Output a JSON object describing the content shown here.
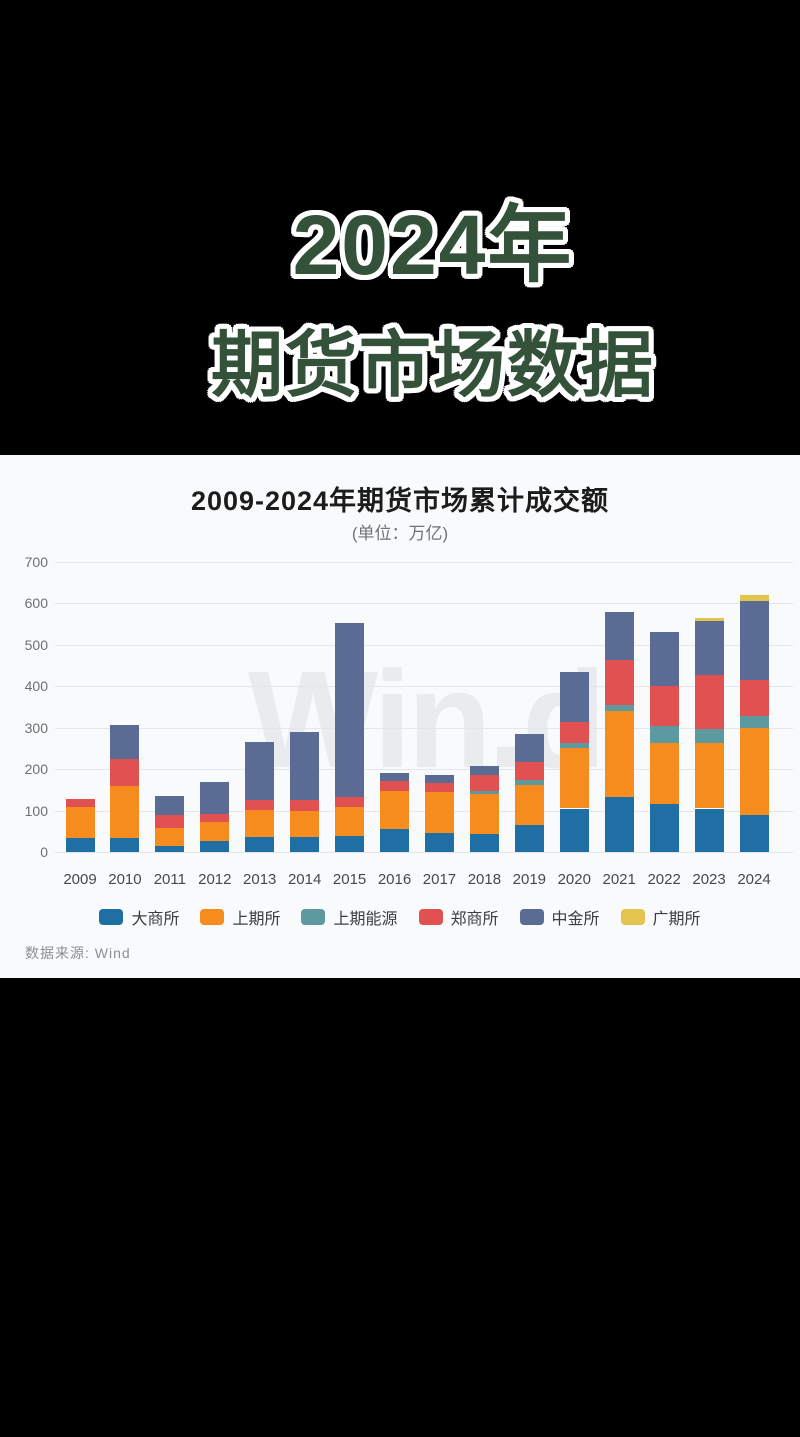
{
  "header": {
    "line1": "2024年",
    "line2": "期货市场数据",
    "title_color": "#345139"
  },
  "panel": {
    "watermark": "Win.d",
    "source": "数据来源: Wind"
  },
  "chart_data": {
    "type": "bar",
    "stacked": true,
    "title": "2009-2024年期货市场累计成交额",
    "subtitle": "(单位：万亿)",
    "xlabel": "",
    "ylabel": "",
    "ylim": [
      0,
      700
    ],
    "yticks": [
      0,
      100,
      200,
      300,
      400,
      500,
      600,
      700
    ],
    "grid": true,
    "legend_position": "bottom",
    "categories": [
      "2009",
      "2010",
      "2011",
      "2012",
      "2013",
      "2014",
      "2015",
      "2016",
      "2017",
      "2018",
      "2019",
      "2020",
      "2021",
      "2022",
      "2023",
      "2024"
    ],
    "series": [
      {
        "name": "大商所",
        "color": "#1f6fa4",
        "values": [
          34,
          33,
          14,
          27,
          36,
          36,
          39,
          55,
          47,
          43,
          65,
          105,
          133,
          117,
          105,
          89
        ]
      },
      {
        "name": "上期所",
        "color": "#f68b1e",
        "values": [
          74,
          126,
          44,
          45,
          66,
          64,
          70,
          93,
          98,
          96,
          97,
          145,
          207,
          147,
          157,
          210
        ]
      },
      {
        "name": "上期能源",
        "color": "#5d9aa0",
        "values": [
          0,
          0,
          0,
          0,
          0,
          0,
          0,
          0,
          0,
          9,
          12,
          12,
          15,
          41,
          35,
          29
        ]
      },
      {
        "name": "郑商所",
        "color": "#e15152",
        "values": [
          20,
          65,
          31,
          19,
          24,
          26,
          24,
          24,
          22,
          38,
          43,
          52,
          108,
          95,
          130,
          87
        ]
      },
      {
        "name": "中金所",
        "color": "#5a6b94",
        "values": [
          0,
          82,
          46,
          77,
          140,
          164,
          420,
          19,
          18,
          22,
          67,
          120,
          116,
          132,
          131,
          192
        ]
      },
      {
        "name": "广期所",
        "color": "#e3c44e",
        "values": [
          0,
          0,
          0,
          0,
          0,
          0,
          0,
          0,
          0,
          0,
          0,
          0,
          0,
          0,
          8,
          13
        ]
      }
    ]
  }
}
